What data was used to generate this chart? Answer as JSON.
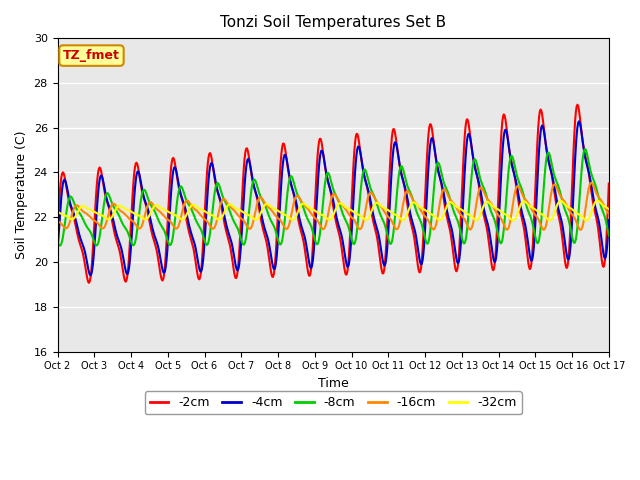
{
  "title": "Tonzi Soil Temperatures Set B",
  "xlabel": "Time",
  "ylabel": "Soil Temperature (C)",
  "ylim": [
    16,
    30
  ],
  "xlim": [
    0,
    360
  ],
  "background_color": "#ffffff",
  "plot_bg_color": "#e8e8e8",
  "grid_color": "#ffffff",
  "series_colors": {
    "-2cm": "#ff0000",
    "-4cm": "#0000cc",
    "-8cm": "#00cc00",
    "-16cm": "#ff8800",
    "-32cm": "#ffff00"
  },
  "series_linewidth": 1.5,
  "annotation_text": "TZ_fmet",
  "annotation_bg": "#ffff99",
  "annotation_border": "#cc8800",
  "annotation_text_color": "#cc0000",
  "tick_labels": [
    "Oct 2",
    "Oct 3",
    "Oct 4",
    "Oct 5",
    "Oct 6",
    "Oct 7",
    "Oct 8",
    "Oct 9",
    "Oct 10",
    "Oct 11",
    "Oct 12",
    "Oct 13",
    "Oct 14",
    "Oct 15",
    "Oct 16",
    "Oct 17"
  ],
  "yticks": [
    16,
    18,
    20,
    22,
    24,
    26,
    28,
    30
  ],
  "n_points": 720
}
